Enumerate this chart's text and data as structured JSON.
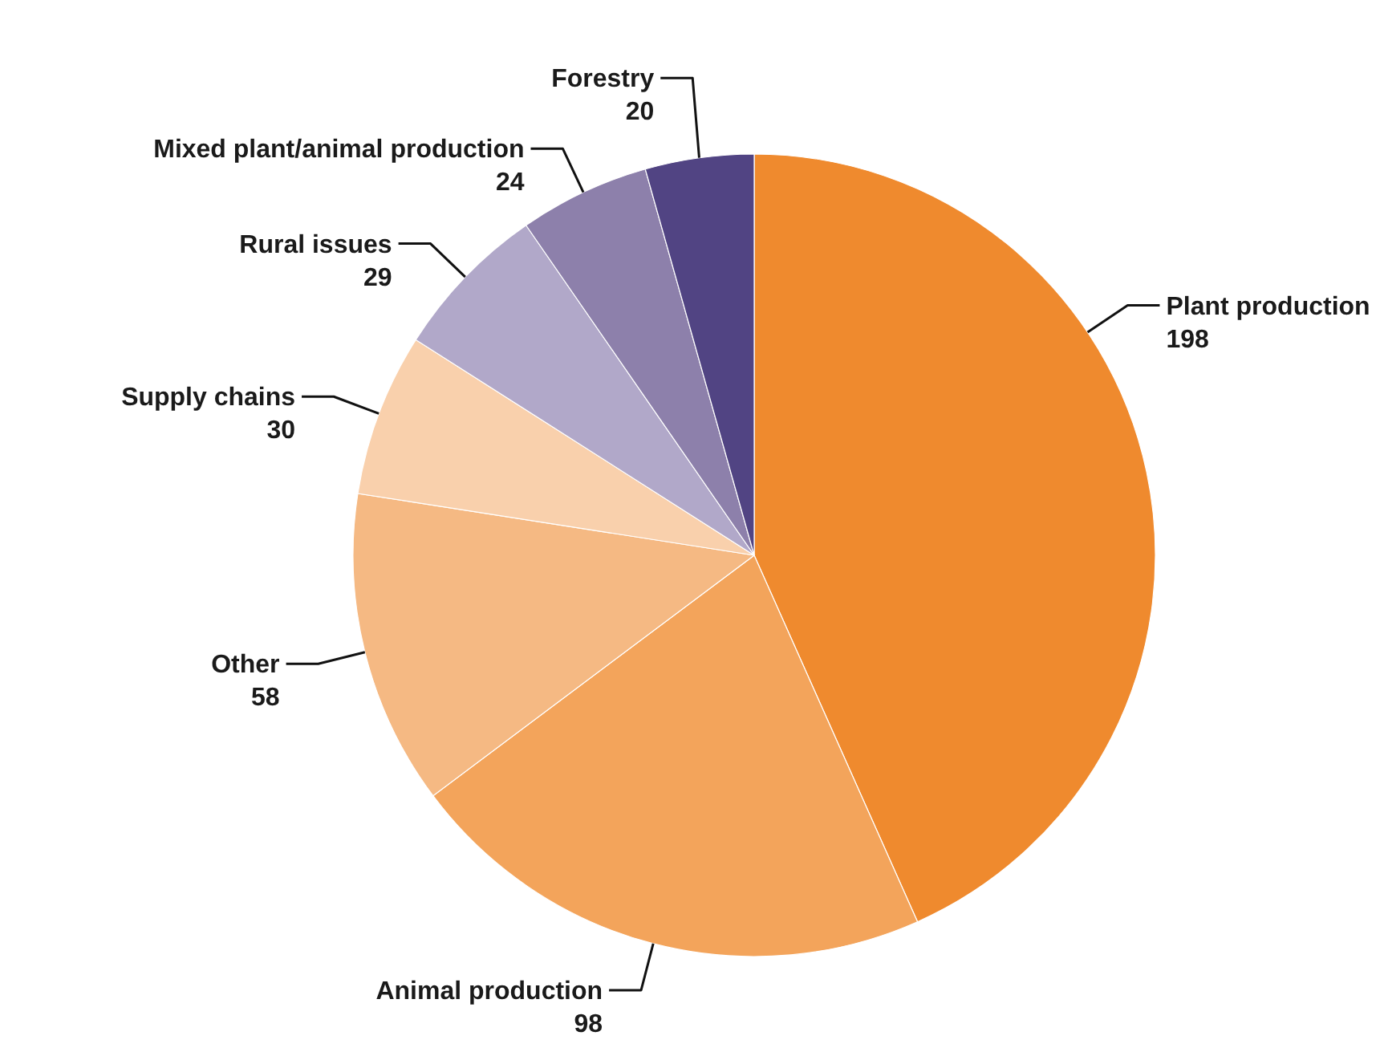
{
  "chart_data": {
    "type": "pie",
    "categories": [
      "Plant production",
      "Animal production",
      "Other",
      "Supply chains",
      "Rural issues",
      "Mixed plant/animal production",
      "Forestry"
    ],
    "values": [
      198,
      98,
      58,
      30,
      29,
      24,
      20
    ],
    "colors": [
      "#ef8a2e",
      "#f3a45b",
      "#f5b983",
      "#f9d0ac",
      "#b1a8c9",
      "#8d80ab",
      "#514483"
    ],
    "data_labels": true
  }
}
